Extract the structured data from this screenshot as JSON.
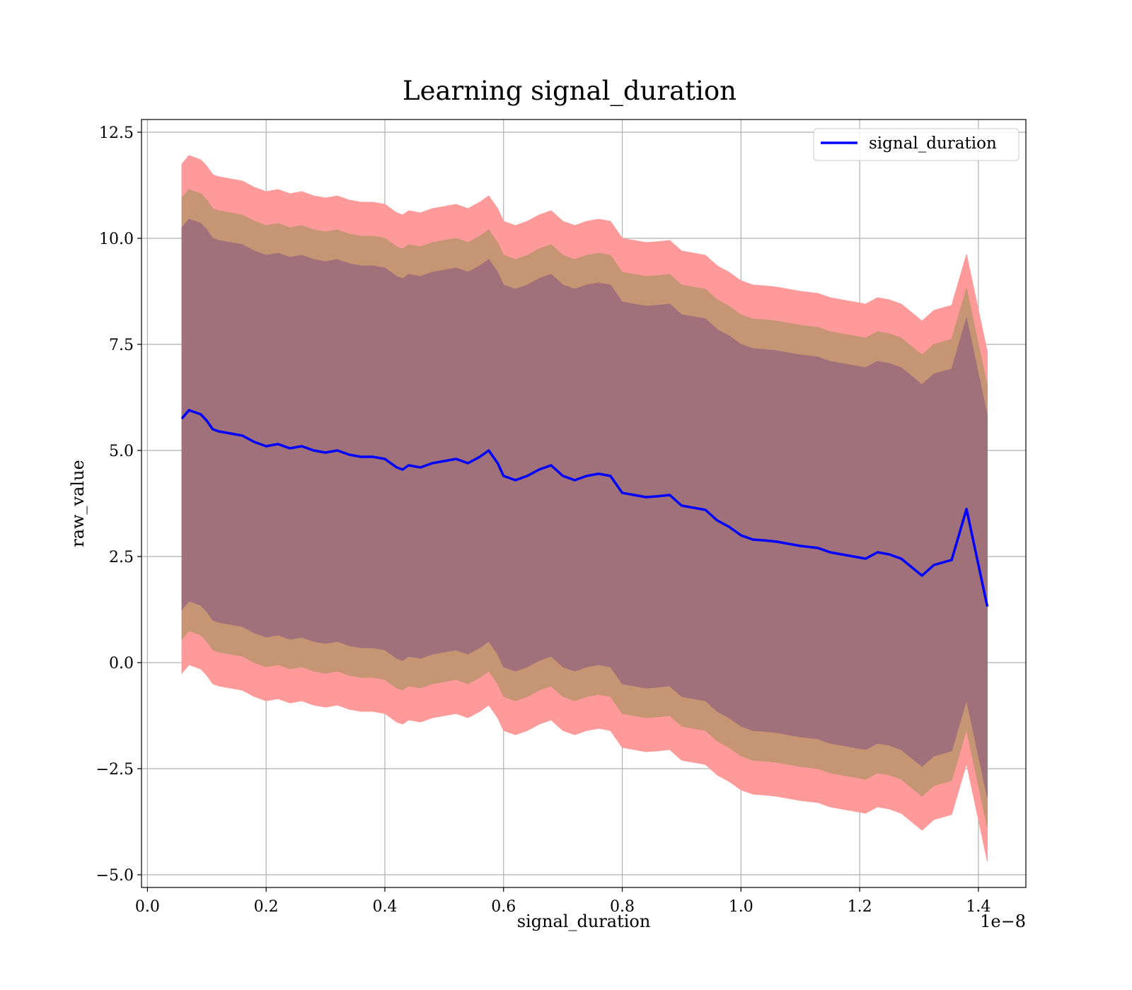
{
  "chart_data": {
    "type": "line",
    "title": "Learning signal_duration",
    "xlabel": "signal_duration",
    "ylabel": "raw_value",
    "x_offset_text": "1e−8",
    "x_scale": 1e-08,
    "xlim": [
      -0.01,
      1.48
    ],
    "ylim": [
      -5.3,
      12.8
    ],
    "grid": true,
    "legend_position": "upper right",
    "x_ticks": [
      0.0,
      0.2,
      0.4,
      0.6,
      0.8,
      1.0,
      1.2,
      1.4
    ],
    "x_tick_labels": [
      "0.0",
      "0.2",
      "0.4",
      "0.6",
      "0.8",
      "1.0",
      "1.2",
      "1.4"
    ],
    "y_ticks": [
      -5.0,
      -2.5,
      0.0,
      2.5,
      5.0,
      7.5,
      10.0,
      12.5
    ],
    "y_tick_labels": [
      "−5.0",
      "−2.5",
      "0.0",
      "2.5",
      "5.0",
      "7.5",
      "10.0",
      "12.5"
    ],
    "colors": {
      "line": "#0000ff",
      "band_outer": "#ff9a9a",
      "band_middle": "#c59574",
      "band_inner": "#a0707b"
    },
    "band_offsets": {
      "outer": 6.0,
      "middle": 5.2,
      "inner": 4.5
    },
    "series": [
      {
        "name": "signal_duration",
        "x": [
          0.058,
          0.07,
          0.09,
          0.1,
          0.11,
          0.12,
          0.14,
          0.16,
          0.18,
          0.2,
          0.22,
          0.24,
          0.26,
          0.28,
          0.3,
          0.32,
          0.34,
          0.36,
          0.38,
          0.4,
          0.42,
          0.43,
          0.44,
          0.46,
          0.48,
          0.5,
          0.52,
          0.54,
          0.56,
          0.575,
          0.59,
          0.6,
          0.62,
          0.64,
          0.66,
          0.68,
          0.7,
          0.72,
          0.74,
          0.76,
          0.78,
          0.8,
          0.82,
          0.84,
          0.86,
          0.88,
          0.9,
          0.92,
          0.94,
          0.96,
          0.98,
          1.0,
          1.02,
          1.04,
          1.06,
          1.08,
          1.1,
          1.13,
          1.15,
          1.17,
          1.19,
          1.21,
          1.23,
          1.25,
          1.27,
          1.305,
          1.325,
          1.355,
          1.38,
          1.415
        ],
        "y": [
          5.75,
          5.95,
          5.85,
          5.7,
          5.5,
          5.45,
          5.4,
          5.35,
          5.2,
          5.1,
          5.15,
          5.05,
          5.1,
          5.0,
          4.95,
          5.0,
          4.9,
          4.85,
          4.85,
          4.8,
          4.6,
          4.55,
          4.65,
          4.6,
          4.7,
          4.75,
          4.8,
          4.7,
          4.85,
          5.0,
          4.7,
          4.4,
          4.3,
          4.4,
          4.55,
          4.65,
          4.4,
          4.3,
          4.4,
          4.45,
          4.4,
          4.0,
          3.95,
          3.9,
          3.92,
          3.95,
          3.7,
          3.65,
          3.6,
          3.35,
          3.2,
          3.0,
          2.9,
          2.88,
          2.85,
          2.8,
          2.75,
          2.7,
          2.6,
          2.55,
          2.5,
          2.45,
          2.6,
          2.55,
          2.45,
          2.05,
          2.3,
          2.42,
          3.62,
          1.32
        ]
      }
    ]
  }
}
